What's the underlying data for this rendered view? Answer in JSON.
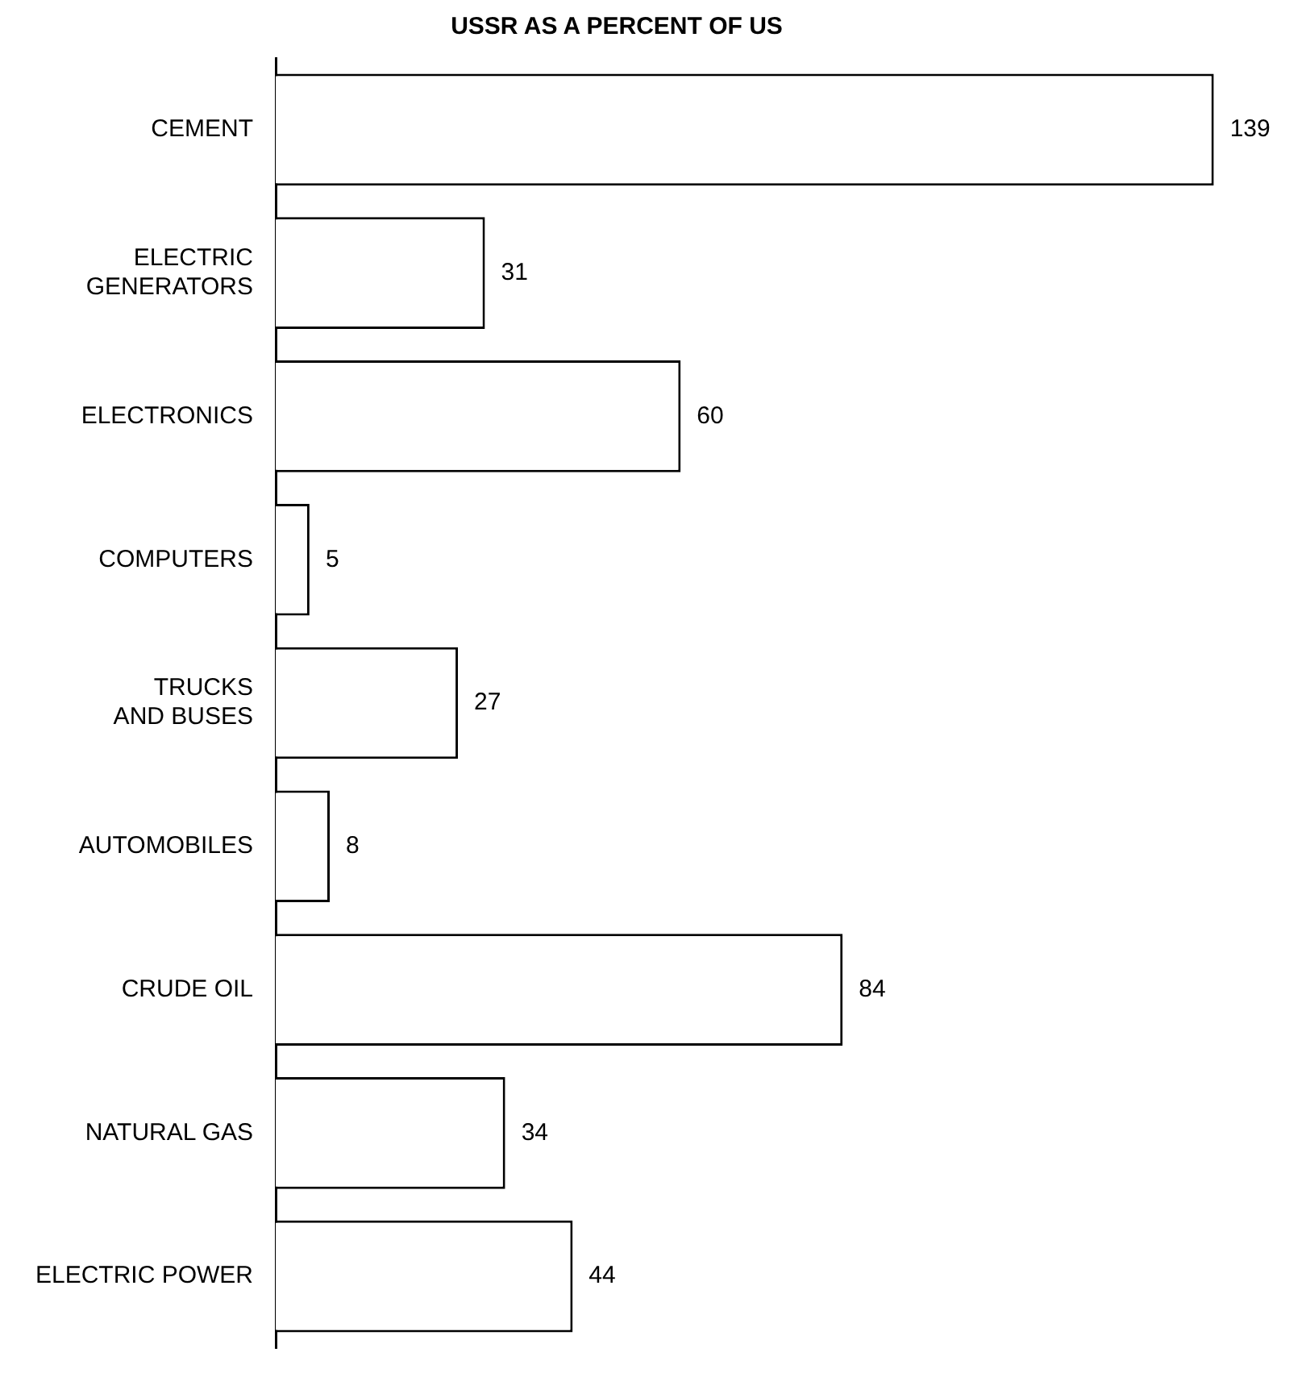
{
  "chart_data": {
    "type": "bar",
    "orientation": "horizontal",
    "title": "USSR AS A PERCENT OF US",
    "categories": [
      "CEMENT",
      "ELECTRIC\nGENERATORS",
      "ELECTRONICS",
      "COMPUTERS",
      "TRUCKS\nAND BUSES",
      "AUTOMOBILES",
      "CRUDE OIL",
      "NATURAL GAS",
      "ELECTRIC POWER"
    ],
    "values": [
      139,
      31,
      60,
      5,
      27,
      8,
      84,
      34,
      44
    ],
    "color": "#ffffff",
    "data_labels": true,
    "grid": false,
    "legend": false
  }
}
